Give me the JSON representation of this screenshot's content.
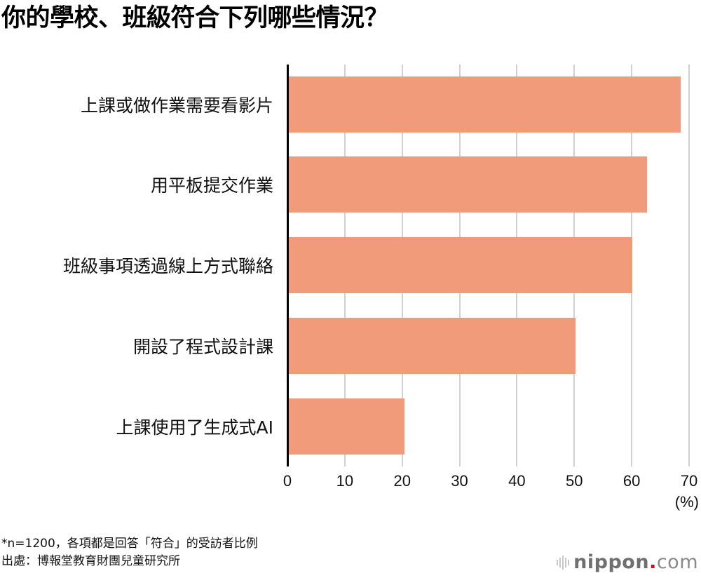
{
  "title": "你的學校、班級符合下列哪些情況？",
  "chart_data": {
    "type": "bar",
    "orientation": "horizontal",
    "title": "你的學校、班級符合下列哪些情況？",
    "categories": [
      "上課或做作業需要看影片",
      "用平板提交作業",
      "班級事項透過線上方式聯絡",
      "開設了程式設計課",
      "上課使用了生成式AI"
    ],
    "values": [
      68.4,
      62.5,
      60.0,
      50.1,
      20.3
    ],
    "xlabel": "(%)",
    "ylabel": "",
    "xlim": [
      0,
      70
    ],
    "xticks": [
      "0",
      "10",
      "20",
      "30",
      "40",
      "50",
      "60",
      "70"
    ],
    "grid": true,
    "legend": "none",
    "bar_color": "#f29b7b"
  },
  "axis": {
    "unit_label": "(%)",
    "ticks": [
      "0",
      "10",
      "20",
      "30",
      "40",
      "50",
      "60",
      "70"
    ]
  },
  "notes": {
    "sample": "*n=1200，各項都是回答「符合」的受訪者比例",
    "source": "出處：博報堂教育財團兒童研究所"
  },
  "logo": {
    "brand": "nippon",
    "dot": ".",
    "suffix": "com"
  },
  "colors": {
    "bar": "#f29b7b",
    "grid": "#d0d0d0",
    "axis": "#000000",
    "logo_dot": "#e60012"
  }
}
